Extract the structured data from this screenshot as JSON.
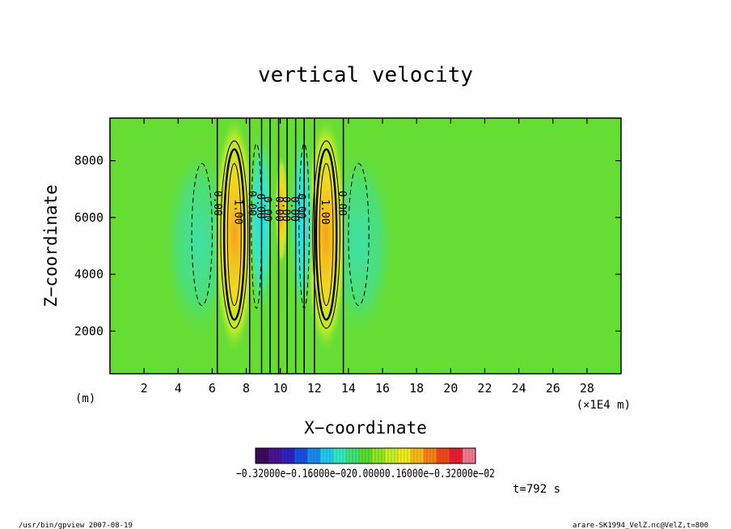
{
  "chart_data": {
    "type": "heatmap",
    "title": "vertical velocity",
    "xlabel": "X−coordinate",
    "ylabel": "Z−coordinate",
    "x_units": "(m)",
    "x_scale_label": "(×1E4 m)",
    "xlim": [
      0,
      30
    ],
    "ylim": [
      500,
      9500
    ],
    "x_ticks": [
      2,
      4,
      6,
      8,
      10,
      12,
      14,
      16,
      18,
      20,
      22,
      24,
      26,
      28
    ],
    "y_ticks": [
      2000,
      4000,
      6000,
      8000
    ],
    "contours": [
      {
        "x": 5.4,
        "z": 5400,
        "rx": 0.6,
        "rz": 2500,
        "style": "dashed",
        "label": ""
      },
      {
        "x": 7.3,
        "z": 5400,
        "rx": 0.8,
        "rz": 3300,
        "style": "thin",
        "label": ""
      },
      {
        "x": 7.3,
        "z": 5400,
        "rx": 0.6,
        "rz": 3000,
        "style": "bold",
        "label": ""
      },
      {
        "x": 7.3,
        "z": 5400,
        "rx": 0.4,
        "rz": 2500,
        "style": "thin",
        "label": ""
      },
      {
        "x": 8.6,
        "z": 5700,
        "rx": 0.3,
        "rz": 2900,
        "style": "dashed",
        "label": ""
      },
      {
        "x": 11.4,
        "z": 5700,
        "rx": 0.3,
        "rz": 2900,
        "style": "dashed",
        "label": ""
      },
      {
        "x": 12.7,
        "z": 5400,
        "rx": 0.8,
        "rz": 3300,
        "style": "thin",
        "label": ""
      },
      {
        "x": 12.7,
        "z": 5400,
        "rx": 0.6,
        "rz": 3000,
        "style": "bold",
        "label": ""
      },
      {
        "x": 12.7,
        "z": 5400,
        "rx": 0.4,
        "rz": 2500,
        "style": "thin",
        "label": ""
      },
      {
        "x": 14.6,
        "z": 5400,
        "rx": 0.6,
        "rz": 2500,
        "style": "dashed",
        "label": ""
      }
    ],
    "contour_labels": [
      {
        "text": "0.00",
        "x": 6.3,
        "z": 6500
      },
      {
        "text": "1.00",
        "x": 7.5,
        "z": 6200
      },
      {
        "text": "0.00",
        "x": 8.3,
        "z": 6500
      },
      {
        "text": "0.00",
        "x": 8.8,
        "z": 6400
      },
      {
        "text": "0.00",
        "x": 9.2,
        "z": 6300
      },
      {
        "text": "0.00",
        "x": 9.9,
        "z": 6300
      },
      {
        "text": "0.00",
        "x": 10.3,
        "z": 6300
      },
      {
        "text": "0.00",
        "x": 10.8,
        "z": 6300
      },
      {
        "text": "0.00",
        "x": 11.2,
        "z": 6400
      },
      {
        "text": "1.00",
        "x": 12.6,
        "z": 6200
      },
      {
        "text": "0.00",
        "x": 13.6,
        "z": 6500
      }
    ],
    "vertical_lines_x": [
      6.3,
      8.2,
      8.9,
      9.4,
      9.9,
      10.4,
      10.9,
      11.4,
      12.0,
      13.7
    ],
    "colorbar": {
      "labels": [
        "−0.32000e−02",
        "0.16000e−02",
        "0.32000e−02"
      ],
      "label_text": "−0.32000e−0.16000e−020.00000.16000e−0.32000e−02",
      "colors": [
        "#3b0a5c",
        "#4b1290",
        "#3020c0",
        "#1850e0",
        "#1a8af0",
        "#22c8f0",
        "#33e8c0",
        "#3ee07a",
        "#55dd33",
        "#8ce626",
        "#c8ee26",
        "#f2e81e",
        "#f7b81a",
        "#f58216",
        "#ef4a18",
        "#e82030",
        "#f07a90"
      ]
    },
    "annotation": "t=792 s",
    "grid": false
  },
  "footer": {
    "left": "/usr/bin/gpview   2007-08-19",
    "right": "arare-SK1994_VelZ.nc@VelZ,t=800"
  }
}
